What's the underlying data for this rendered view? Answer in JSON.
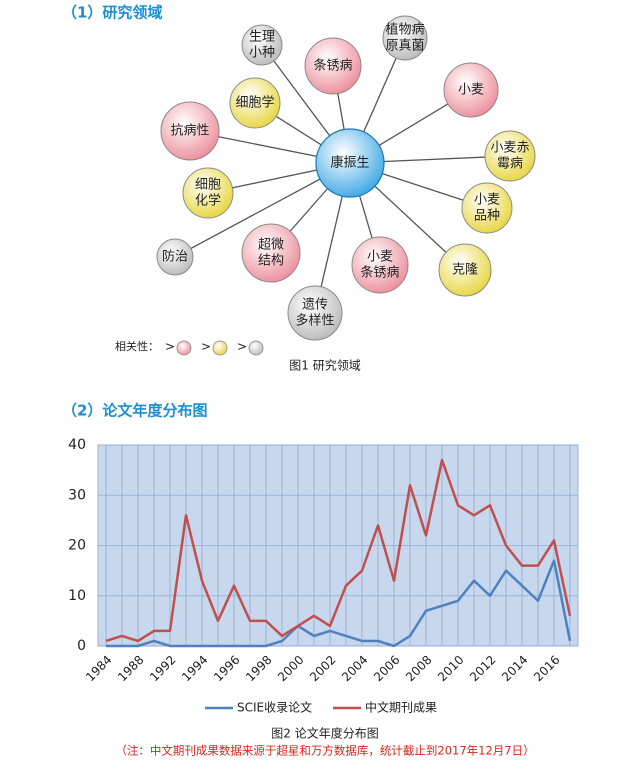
{
  "section1": {
    "heading": "（1）研究领域",
    "center": {
      "label": "康振生",
      "color": "#3aa6e4"
    },
    "nodes": [
      {
        "lines": [
          "生理",
          "小种"
        ],
        "color": "#b8b8b8"
      },
      {
        "lines": [
          "条锈病"
        ],
        "color": "#ec8b98"
      },
      {
        "lines": [
          "植物病",
          "原真菌"
        ],
        "color": "#b8b8b8"
      },
      {
        "lines": [
          "小麦"
        ],
        "color": "#ec8b98"
      },
      {
        "lines": [
          "细胞学"
        ],
        "color": "#e6d43a"
      },
      {
        "lines": [
          "抗病性"
        ],
        "color": "#ec8b98"
      },
      {
        "lines": [
          "小麦赤",
          "霉病"
        ],
        "color": "#e6d43a"
      },
      {
        "lines": [
          "细胞",
          "化学"
        ],
        "color": "#e6d43a"
      },
      {
        "lines": [
          "小麦",
          "品种"
        ],
        "color": "#e6d43a"
      },
      {
        "lines": [
          "防治"
        ],
        "color": "#b8b8b8"
      },
      {
        "lines": [
          "超微",
          "结构"
        ],
        "color": "#ec8b98"
      },
      {
        "lines": [
          "小麦",
          "条锈病"
        ],
        "color": "#ec8b98"
      },
      {
        "lines": [
          "克隆"
        ],
        "color": "#e6d43a"
      },
      {
        "lines": [
          "遗传",
          "多样性"
        ],
        "color": "#b8b8b8"
      }
    ],
    "legend": {
      "label": "相关性：",
      "separator": ">",
      "colors": [
        "#ec8b98",
        "#e6d43a",
        "#b8b8b8"
      ]
    },
    "caption": "图1 研究领域"
  },
  "section2": {
    "heading": "（2）论文年度分布图",
    "caption": "图2  论文年度分布图",
    "note": "（注：中文期刊成果数据来源于超星和万方数据库，统计截止到2017年12月7日）"
  },
  "chart_data": {
    "type": "line",
    "categories": [
      "1984",
      null,
      "1988",
      null,
      "1992",
      null,
      "1994",
      null,
      "1996",
      null,
      "1998",
      null,
      "2000",
      null,
      "2002",
      null,
      "2004",
      null,
      "2006",
      null,
      "2008",
      null,
      "2010",
      null,
      "2012",
      null,
      "2014",
      null,
      "2016",
      null
    ],
    "series": [
      {
        "name": "SCIE收录论文",
        "color": "#4f81bd",
        "values": [
          0,
          0,
          0,
          1,
          0,
          0,
          0,
          0,
          0,
          0,
          0,
          1,
          4,
          2,
          3,
          2,
          1,
          1,
          0,
          2,
          7,
          8,
          9,
          13,
          10,
          15,
          12,
          9,
          17,
          1
        ]
      },
      {
        "name": "中文期刊成果",
        "color": "#c0504d",
        "values": [
          1,
          2,
          1,
          3,
          3,
          26,
          13,
          5,
          12,
          5,
          5,
          2,
          4,
          6,
          4,
          12,
          15,
          24,
          13,
          32,
          22,
          37,
          28,
          26,
          28,
          20,
          16,
          16,
          21,
          6
        ]
      }
    ],
    "ylim": [
      0,
      40
    ],
    "yticks": [
      0,
      10,
      20,
      30,
      40
    ],
    "grid": true
  }
}
